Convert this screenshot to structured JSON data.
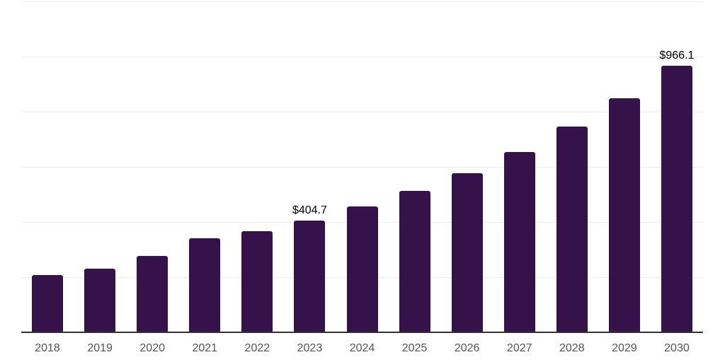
{
  "chart": {
    "colors": {
      "background": "#ffffff",
      "bar": "#36124a",
      "axis": "#333333",
      "gridline": "#ededed",
      "tick_label": "#545454",
      "value_label": "#000000"
    }
  },
  "chart_data": {
    "type": "bar",
    "title": "",
    "xlabel": "",
    "ylabel": "",
    "categories": [
      "2018",
      "2019",
      "2020",
      "2021",
      "2022",
      "2023",
      "2024",
      "2025",
      "2026",
      "2027",
      "2028",
      "2029",
      "2030"
    ],
    "values": [
      208,
      231,
      278,
      341,
      366,
      404.7,
      456,
      512,
      578,
      655,
      746,
      848,
      966.1
    ],
    "data_labels": [
      "",
      "",
      "",
      "",
      "",
      "$404.7",
      "",
      "",
      "",
      "",
      "",
      "",
      "$966.1"
    ],
    "value_prefix": "$",
    "ylim": [
      0,
      1200
    ],
    "gridline_step": 200,
    "grid": "horizontal",
    "legend": "none",
    "x_axis_visible": true,
    "y_axis_labels_visible": false
  }
}
